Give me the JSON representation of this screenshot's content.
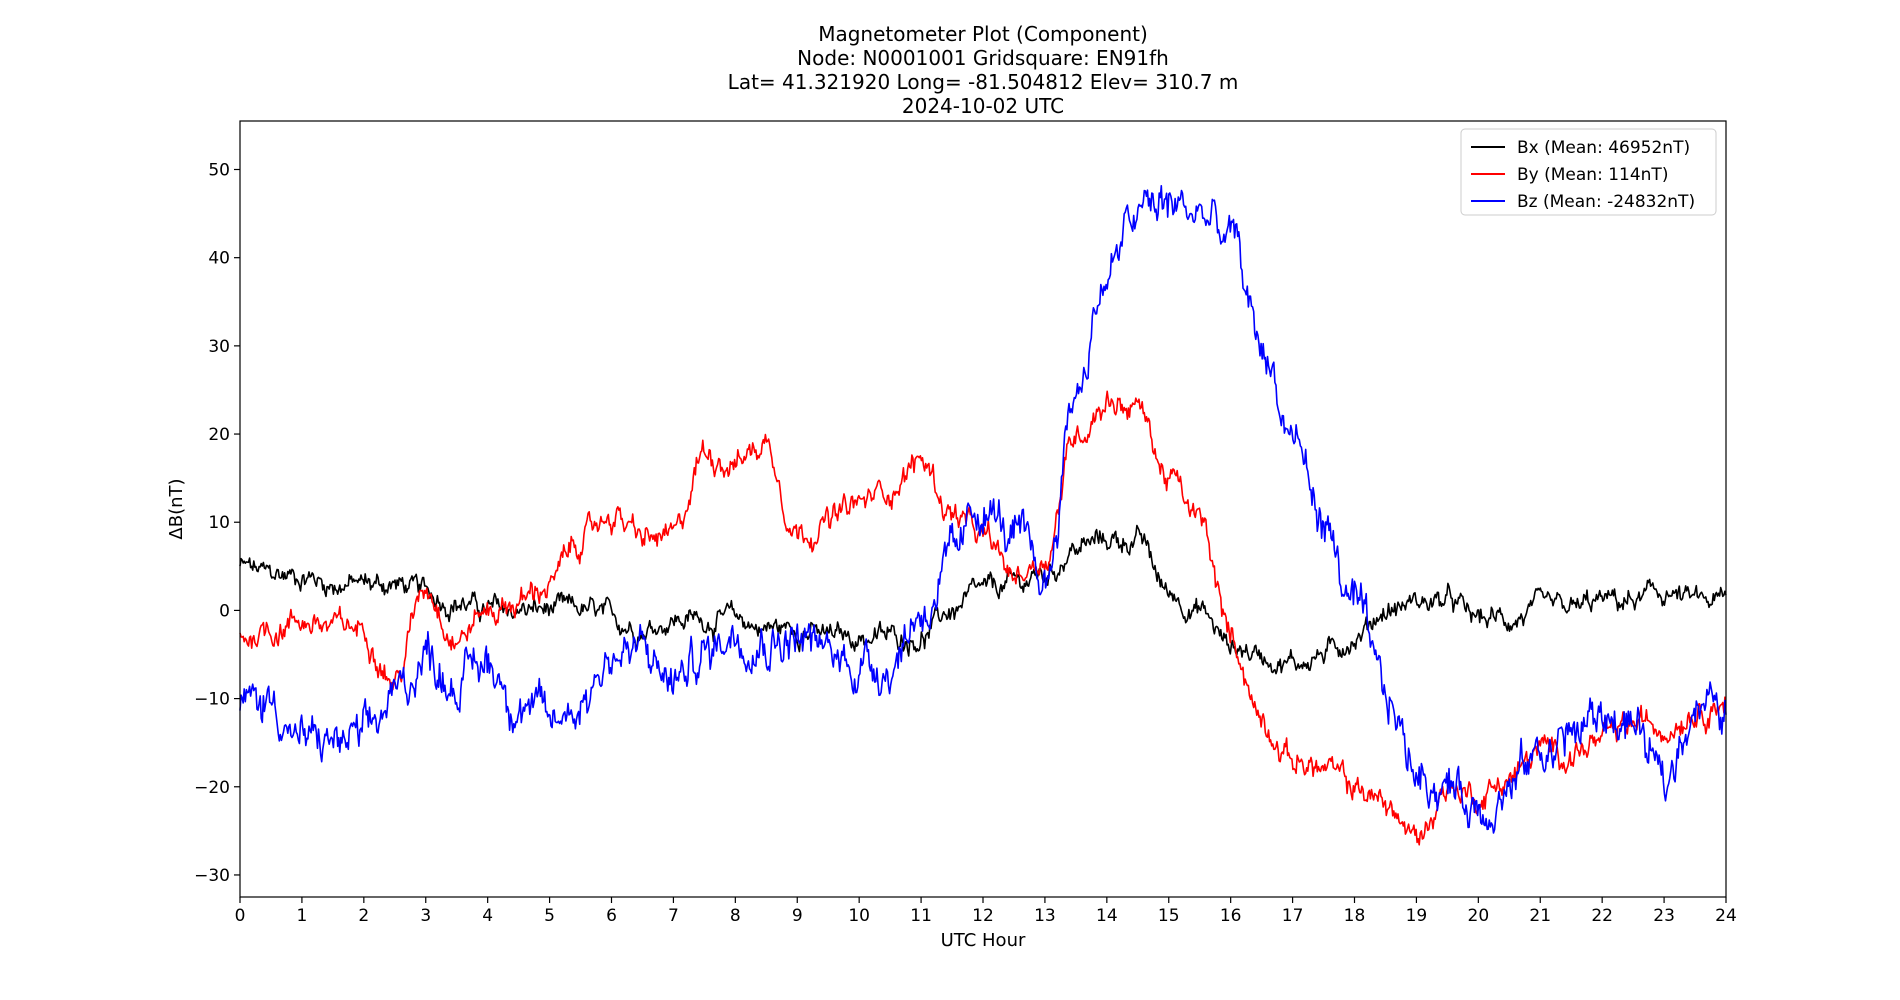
{
  "chart_data": {
    "type": "line",
    "title_lines": [
      "Magnetometer Plot (Component)",
      "Node:  N0001001     Gridsquare:  EN91fh",
      "Lat= 41.321920    Long= -81.504812    Elev= 310.7 m",
      "2024-10-02  UTC"
    ],
    "xlabel": "UTC Hour",
    "ylabel": "ΔB(nT)",
    "xlim": [
      0,
      24
    ],
    "ylim": [
      -32.5,
      55.5
    ],
    "xticks": [
      0,
      1,
      2,
      3,
      4,
      5,
      6,
      7,
      8,
      9,
      10,
      11,
      12,
      13,
      14,
      15,
      16,
      17,
      18,
      19,
      20,
      21,
      22,
      23,
      24
    ],
    "yticks": [
      -30,
      -20,
      -10,
      0,
      10,
      20,
      30,
      40,
      50
    ],
    "ytick_labels": [
      "−30",
      "−20",
      "−10",
      "0",
      "10",
      "20",
      "30",
      "40",
      "50"
    ],
    "grid": false,
    "legend_position": "top-right",
    "series": [
      {
        "name": "Bx (Mean: 46952nT)",
        "color": "#000000",
        "noise": 1.0,
        "x": [
          0,
          0.5,
          1,
          1.5,
          2,
          2.5,
          3,
          3.5,
          4,
          4.5,
          5,
          5.5,
          6,
          6.5,
          7,
          7.5,
          8,
          8.5,
          9,
          9.5,
          10,
          10.5,
          11,
          11.5,
          12,
          12.5,
          13,
          13.5,
          14,
          14.5,
          15,
          15.5,
          16,
          16.5,
          17,
          17.5,
          18,
          18.5,
          19,
          19.5,
          20,
          20.5,
          21,
          21.5,
          22,
          22.5,
          23,
          23.5,
          24
        ],
        "y": [
          5,
          4,
          4,
          3,
          3,
          3,
          2,
          1,
          0,
          0,
          0,
          0,
          -1,
          -2,
          -1,
          -1,
          -1,
          -2,
          -2,
          -3,
          -3,
          -3,
          -3,
          0,
          2,
          3,
          4,
          7,
          8,
          8,
          2,
          0,
          -4,
          -5,
          -6,
          -5,
          -3,
          0,
          1,
          1,
          -1,
          -1,
          0,
          0,
          1,
          1,
          2,
          1,
          1
        ]
      },
      {
        "name": "By (Mean: 114nT)",
        "color": "#ff0000",
        "noise": 1.2,
        "x": [
          0,
          0.5,
          1,
          1.5,
          2,
          2.5,
          3,
          3.5,
          4,
          4.5,
          5,
          5.5,
          6,
          6.5,
          7,
          7.5,
          8,
          8.5,
          9,
          9.5,
          10,
          10.5,
          11,
          11.5,
          12,
          12.5,
          13,
          13.5,
          14,
          14.5,
          15,
          15.5,
          16,
          16.5,
          17,
          17.5,
          18,
          18.5,
          19,
          19.5,
          20,
          20.5,
          21,
          21.5,
          22,
          22.5,
          23,
          23.5,
          24
        ],
        "y": [
          -3,
          -2,
          -1,
          -2,
          -2,
          -8,
          3,
          -3,
          0,
          1,
          3,
          8,
          11,
          8,
          8,
          18,
          17,
          19,
          9,
          10,
          12,
          14,
          17,
          11,
          8,
          4,
          6,
          20,
          24,
          23,
          15,
          10,
          -3,
          -12,
          -17,
          -18,
          -20,
          -22,
          -26,
          -20,
          -21,
          -19,
          -16,
          -16,
          -15,
          -13,
          -13,
          -11,
          -10
        ]
      },
      {
        "name": "Bz (Mean: -24832nT)",
        "color": "#0000ff",
        "noise": 2.0,
        "x": [
          0,
          0.5,
          1,
          1.5,
          2,
          2.5,
          3,
          3.5,
          4,
          4.5,
          5,
          5.5,
          6,
          6.5,
          7,
          7.5,
          8,
          8.5,
          9,
          9.5,
          10,
          10.5,
          11,
          11.5,
          12,
          12.5,
          13,
          13.5,
          14,
          14.5,
          15,
          15.5,
          16,
          16.5,
          17,
          17.5,
          18,
          18.5,
          19,
          19.5,
          20,
          20.5,
          21,
          21.5,
          22,
          22.5,
          23,
          23.5,
          24
        ],
        "y": [
          -11,
          -10,
          -15,
          -15,
          -15,
          -10,
          -5,
          -8,
          -6,
          -10,
          -13,
          -10,
          -5,
          -5,
          -8,
          -5,
          -2,
          -3,
          -3,
          -5,
          -6,
          -6,
          0,
          5,
          12,
          8,
          3,
          25,
          38,
          45,
          46,
          45,
          42,
          30,
          20,
          10,
          0,
          -10,
          -18,
          -20,
          -22,
          -20,
          -16,
          -14,
          -12,
          -13,
          -20,
          -10,
          -12
        ]
      }
    ]
  }
}
